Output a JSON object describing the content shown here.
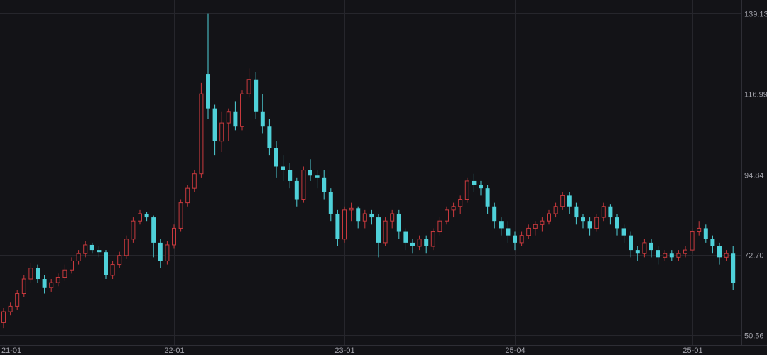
{
  "chart_data": {
    "type": "candlestick",
    "title": "",
    "xlabel": "",
    "ylabel": "",
    "ylim": [
      50.56,
      139.13
    ],
    "y_ticks": [
      "139.13",
      "116.99",
      "94.84",
      "72.70",
      "50.56"
    ],
    "x_ticks": [
      "21-01",
      "22-01",
      "23-01",
      "25-04",
      "25-01"
    ],
    "x_tick_candle_index": [
      1,
      25,
      50,
      75,
      101
    ],
    "grid": true,
    "colors": {
      "background": "#131317",
      "up": "#c8393d",
      "down": "#4fd1d9",
      "grid": "#26262c",
      "text": "#a4a4ac"
    },
    "ohlc_format": [
      "open",
      "high",
      "low",
      "close"
    ],
    "candles": [
      [
        54,
        58,
        52.5,
        57
      ],
      [
        57,
        59.5,
        56,
        58.5
      ],
      [
        58.5,
        63,
        57.5,
        62
      ],
      [
        62,
        67,
        61,
        66
      ],
      [
        66,
        70.5,
        65,
        69
      ],
      [
        69,
        70,
        65,
        66
      ],
      [
        66,
        67,
        62,
        63.7
      ],
      [
        63.7,
        66,
        62.5,
        65
      ],
      [
        65,
        67.5,
        64,
        66.5
      ],
      [
        66.5,
        70,
        65.5,
        68.5
      ],
      [
        68.5,
        72,
        67.5,
        71
      ],
      [
        71,
        74,
        70,
        73
      ],
      [
        73,
        76.5,
        72,
        75.4
      ],
      [
        75.4,
        76,
        73,
        74
      ],
      [
        74,
        75,
        72,
        73.4
      ],
      [
        73.4,
        74,
        66,
        67
      ],
      [
        67,
        71,
        66,
        70
      ],
      [
        70,
        73.5,
        69,
        72.5
      ],
      [
        72.5,
        78,
        71.5,
        77
      ],
      [
        77,
        83,
        76,
        82
      ],
      [
        82,
        85,
        81,
        84
      ],
      [
        84,
        84.5,
        82,
        83
      ],
      [
        83,
        83.5,
        72,
        76
      ],
      [
        76,
        77,
        69,
        71
      ],
      [
        71,
        76.5,
        70,
        75.4
      ],
      [
        75.4,
        81,
        74.5,
        80
      ],
      [
        80,
        88,
        79,
        87
      ],
      [
        87,
        92,
        86,
        91
      ],
      [
        91,
        96,
        90,
        95
      ],
      [
        95,
        120,
        94,
        117
      ],
      [
        122.5,
        139,
        110,
        113
      ],
      [
        113,
        114,
        100,
        104
      ],
      [
        104,
        112,
        101,
        109
      ],
      [
        109,
        113,
        104,
        112
      ],
      [
        112,
        115,
        107,
        108
      ],
      [
        108,
        118,
        107,
        117
      ],
      [
        117,
        124,
        116,
        121
      ],
      [
        121,
        123,
        110,
        112
      ],
      [
        112,
        117,
        106,
        108
      ],
      [
        108,
        110,
        100,
        102
      ],
      [
        102,
        104,
        94,
        97
      ],
      [
        97,
        100,
        93,
        96
      ],
      [
        96,
        98,
        91,
        93
      ],
      [
        93,
        94,
        86,
        88
      ],
      [
        88,
        97,
        87,
        96
      ],
      [
        96,
        99,
        93,
        94.5
      ],
      [
        94.5,
        96,
        91,
        94
      ],
      [
        94,
        96,
        88,
        90
      ],
      [
        90,
        91,
        82,
        84
      ],
      [
        84,
        85,
        75,
        77
      ],
      [
        77,
        86,
        76,
        85
      ],
      [
        85,
        87,
        82,
        85.5
      ],
      [
        85.5,
        86,
        80,
        82
      ],
      [
        82,
        85,
        80,
        84
      ],
      [
        84,
        85,
        81,
        83
      ],
      [
        83,
        84,
        72,
        76
      ],
      [
        76,
        83,
        75,
        82
      ],
      [
        82,
        85,
        80,
        84
      ],
      [
        84,
        85,
        77,
        79
      ],
      [
        79,
        80,
        74,
        76
      ],
      [
        76,
        77,
        73,
        75
      ],
      [
        75,
        78,
        74,
        77
      ],
      [
        77,
        78,
        73,
        75
      ],
      [
        75,
        80,
        74,
        79
      ],
      [
        79,
        83,
        78,
        82
      ],
      [
        82,
        86,
        81,
        85
      ],
      [
        85,
        87,
        83,
        86
      ],
      [
        86,
        89,
        84,
        88
      ],
      [
        88,
        94,
        87,
        93
      ],
      [
        93,
        95,
        90,
        92
      ],
      [
        92,
        93,
        89,
        91
      ],
      [
        91,
        92,
        84,
        86
      ],
      [
        86,
        87,
        80,
        82
      ],
      [
        82,
        83,
        78,
        80
      ],
      [
        80,
        82,
        76,
        78
      ],
      [
        78,
        79,
        74,
        76
      ],
      [
        76,
        79,
        75,
        78
      ],
      [
        78,
        81,
        77,
        80
      ],
      [
        80,
        82,
        78,
        81
      ],
      [
        81,
        83,
        79,
        82
      ],
      [
        82,
        85,
        81,
        84
      ],
      [
        84,
        87,
        83,
        86
      ],
      [
        86,
        90,
        85,
        89
      ],
      [
        89,
        90,
        84,
        86
      ],
      [
        86,
        87,
        81,
        83
      ],
      [
        83,
        84,
        80,
        82
      ],
      [
        82,
        83,
        78,
        80
      ],
      [
        80,
        84,
        79,
        83
      ],
      [
        83,
        87,
        82,
        86
      ],
      [
        86,
        86.5,
        81,
        83
      ],
      [
        83,
        84,
        78,
        80
      ],
      [
        80,
        81,
        76,
        78
      ],
      [
        78,
        79,
        72,
        74
      ],
      [
        74,
        75,
        71,
        73
      ],
      [
        73,
        77,
        72,
        76
      ],
      [
        76,
        77,
        72,
        74
      ],
      [
        74,
        75,
        70,
        72
      ],
      [
        72,
        74,
        71,
        73
      ],
      [
        73,
        74,
        71,
        72
      ],
      [
        72,
        74,
        71,
        73
      ],
      [
        73,
        75,
        72,
        74
      ],
      [
        74,
        80,
        73,
        79
      ],
      [
        79,
        82,
        78,
        80
      ],
      [
        80,
        81,
        76,
        77
      ],
      [
        77,
        78,
        73,
        75
      ],
      [
        75,
        76,
        70,
        72
      ],
      [
        72,
        74,
        71,
        73
      ],
      [
        73,
        75,
        63,
        65
      ]
    ]
  }
}
